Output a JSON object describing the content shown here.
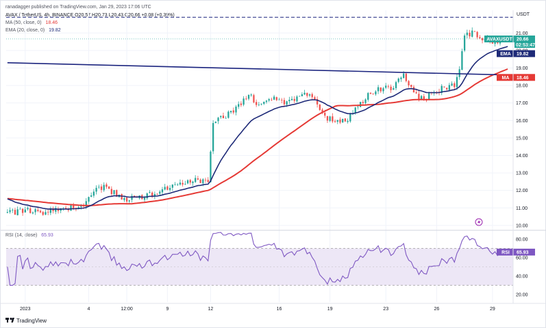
{
  "header": {
    "published": "ranadagger published on TradingView.com, Jan 29, 2023 17:06 UTC",
    "symbol_line": "AVAX / TetherUS, 4h, BINANCE  O20.57  H20.73  L20.43  C20.66  +0.08 (+0.39%)",
    "ma_line": "MA (50, close, 0)",
    "ma_value": "18.46",
    "ema_line": "EMA (20, close, 0)",
    "ema_value": "19.82",
    "rsi_line": "RSI (14, close)",
    "rsi_value": "65.93"
  },
  "footer": {
    "brand": "TradingView"
  },
  "colors": {
    "up": "#26a69a",
    "down": "#ef5350",
    "ema": "#1e2a78",
    "ma": "#e53935",
    "trendline": "#1a237e",
    "rsi": "#7e57c2",
    "rsi_band": "#ede7f6"
  },
  "chart_data": [
    {
      "type": "candlestick",
      "title": "AVAX / TetherUS, 4h, BINANCE",
      "y_axis_label": "USDT",
      "ylim": [
        9.8,
        22.3
      ],
      "y_ticks": [
        "21.00",
        "20.00",
        "19.00",
        "18.00",
        "17.00",
        "16.00",
        "15.00",
        "14.00",
        "13.00",
        "12.00",
        "11.00",
        "10.00"
      ],
      "x_ticks": [
        "2023",
        "4",
        "12:00",
        "9",
        "12",
        "16",
        "19",
        "23",
        "26",
        "29"
      ],
      "x_tick_index": [
        7,
        32,
        47,
        63,
        80,
        107,
        127,
        149,
        169,
        191
      ],
      "n_bars": 198,
      "path_keys": [
        [
          0,
          10.7
        ],
        [
          8,
          10.85
        ],
        [
          14,
          10.75
        ],
        [
          20,
          10.9
        ],
        [
          25,
          11.05
        ],
        [
          30,
          11.25
        ],
        [
          34,
          12.1
        ],
        [
          38,
          12.2
        ],
        [
          42,
          11.85
        ],
        [
          46,
          11.5
        ],
        [
          50,
          11.6
        ],
        [
          56,
          11.75
        ],
        [
          62,
          12.1
        ],
        [
          66,
          12.35
        ],
        [
          72,
          12.6
        ],
        [
          79,
          12.45
        ],
        [
          81,
          15.9
        ],
        [
          86,
          16.3
        ],
        [
          91,
          16.8
        ],
        [
          95,
          17.5
        ],
        [
          99,
          16.9
        ],
        [
          104,
          17.3
        ],
        [
          109,
          16.9
        ],
        [
          114,
          17.3
        ],
        [
          119,
          17.6
        ],
        [
          124,
          16.3
        ],
        [
          129,
          15.9
        ],
        [
          134,
          16.1
        ],
        [
          139,
          17.0
        ],
        [
          143,
          17.6
        ],
        [
          148,
          17.9
        ],
        [
          152,
          17.8
        ],
        [
          156,
          18.7
        ],
        [
          160,
          17.5
        ],
        [
          164,
          17.2
        ],
        [
          168,
          17.6
        ],
        [
          172,
          17.9
        ],
        [
          176,
          18.0
        ],
        [
          178,
          19.0
        ],
        [
          180,
          20.8
        ],
        [
          183,
          21.0
        ],
        [
          187,
          20.7
        ],
        [
          191,
          20.5
        ],
        [
          197,
          20.66
        ]
      ],
      "series": [
        {
          "name": "EMA (20, close, 0)",
          "last": 19.82
        },
        {
          "name": "MA (50, close, 0)",
          "last": 18.46
        },
        {
          "name": "Trendline",
          "points": [
            [
              0,
              19.3
            ],
            [
              197,
              18.6
            ]
          ]
        }
      ],
      "resistance_level": 21.9,
      "last_price": 20.66,
      "last_price_time": "02:53:47",
      "price_tag_label": "AVAXUSDT",
      "ema_tag_label": "EMA",
      "ma_tag_label": "MA"
    },
    {
      "type": "line",
      "title": "RSI (14, close)",
      "ylim": [
        12,
        88
      ],
      "y_ticks": [
        "80.00",
        "60.00",
        "40.00",
        "20.00"
      ],
      "bands": [
        70,
        30
      ],
      "midline": 50,
      "last": 65.93,
      "tag_label": "RSI"
    }
  ]
}
